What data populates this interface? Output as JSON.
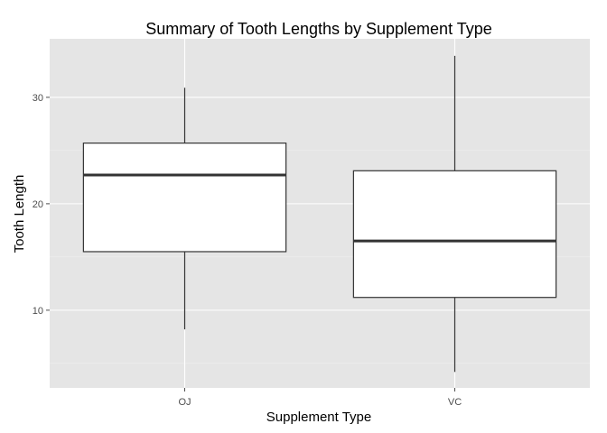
{
  "chart_data": {
    "type": "box",
    "title": "Summary of Tooth Lengths by Supplement Type",
    "xlabel": "Supplement Type",
    "ylabel": "Tooth Length",
    "ylim": [
      2.7,
      35.5
    ],
    "y_ticks": [
      10,
      20,
      30
    ],
    "y_tick_labels": [
      "10",
      "20",
      "30"
    ],
    "y_minor_ticks": [
      5,
      15,
      25
    ],
    "grid": true,
    "categories": [
      "OJ",
      "VC"
    ],
    "boxes": [
      {
        "category": "OJ",
        "min": 8.2,
        "q1": 15.5,
        "median": 22.7,
        "q3": 25.7,
        "max": 30.9
      },
      {
        "category": "VC",
        "min": 4.2,
        "q1": 11.2,
        "median": 16.5,
        "q3": 23.1,
        "max": 33.9
      }
    ],
    "colors": {
      "panel_background": "#e5e5e5",
      "grid_major": "#ffffff",
      "grid_minor": "#f2f2f2",
      "box_fill": "#ffffff",
      "box_stroke": "#333333",
      "tick_text": "#4d4d4d"
    }
  }
}
